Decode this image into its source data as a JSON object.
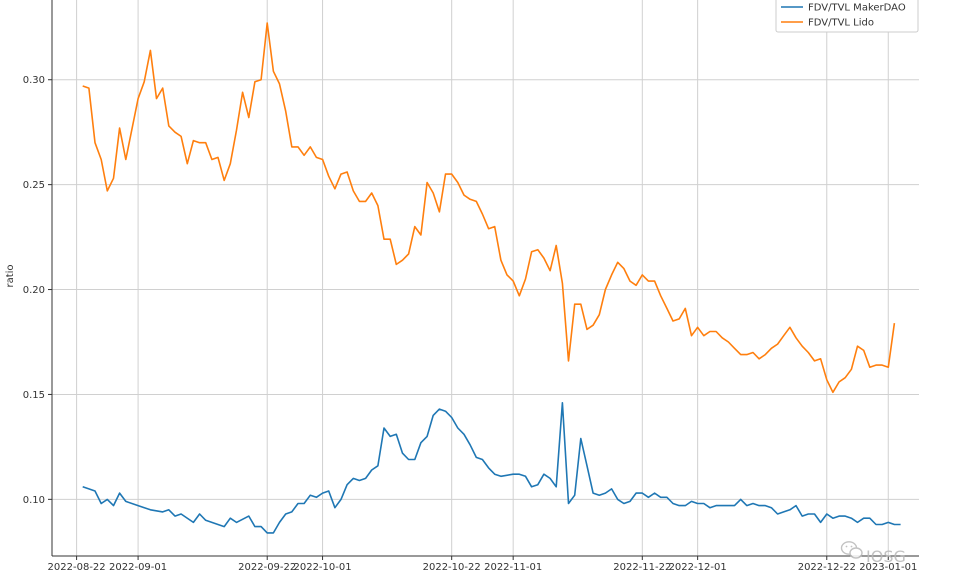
{
  "chart_data": {
    "type": "line",
    "title": "",
    "xlabel": "",
    "ylabel": "ratio",
    "xlim": [
      "2022-08-18",
      "2023-01-06"
    ],
    "ylim": [
      0.073,
      0.338
    ],
    "grid": true,
    "legend_position": "top-right",
    "y_ticks": [
      0.1,
      0.15,
      0.2,
      0.25,
      0.3
    ],
    "x_ticks": [
      "2022-08-22",
      "2022-09-01",
      "2022-09-22",
      "2022-10-01",
      "2022-10-22",
      "2022-11-01",
      "2022-11-22",
      "2022-12-01",
      "2022-12-22",
      "2023-01-01"
    ],
    "series": [
      {
        "name": "FDV/TVL MakerDAO",
        "color": "#1f77b4",
        "points": [
          [
            "2022-08-23",
            0.106
          ],
          [
            "2022-08-24",
            0.105
          ],
          [
            "2022-08-25",
            0.104
          ],
          [
            "2022-08-26",
            0.098
          ],
          [
            "2022-08-27",
            0.1
          ],
          [
            "2022-08-28",
            0.097
          ],
          [
            "2022-08-29",
            0.103
          ],
          [
            "2022-08-30",
            0.099
          ],
          [
            "2022-09-01",
            0.097
          ],
          [
            "2022-09-03",
            0.095
          ],
          [
            "2022-09-05",
            0.094
          ],
          [
            "2022-09-06",
            0.095
          ],
          [
            "2022-09-07",
            0.092
          ],
          [
            "2022-09-08",
            0.093
          ],
          [
            "2022-09-10",
            0.089
          ],
          [
            "2022-09-11",
            0.093
          ],
          [
            "2022-09-12",
            0.09
          ],
          [
            "2022-09-14",
            0.088
          ],
          [
            "2022-09-15",
            0.087
          ],
          [
            "2022-09-16",
            0.091
          ],
          [
            "2022-09-17",
            0.089
          ],
          [
            "2022-09-19",
            0.092
          ],
          [
            "2022-09-20",
            0.087
          ],
          [
            "2022-09-21",
            0.087
          ],
          [
            "2022-09-22",
            0.084
          ],
          [
            "2022-09-23",
            0.084
          ],
          [
            "2022-09-24",
            0.089
          ],
          [
            "2022-09-25",
            0.093
          ],
          [
            "2022-09-26",
            0.094
          ],
          [
            "2022-09-27",
            0.098
          ],
          [
            "2022-09-28",
            0.098
          ],
          [
            "2022-09-29",
            0.102
          ],
          [
            "2022-09-30",
            0.101
          ],
          [
            "2022-10-01",
            0.103
          ],
          [
            "2022-10-02",
            0.104
          ],
          [
            "2022-10-03",
            0.096
          ],
          [
            "2022-10-04",
            0.1
          ],
          [
            "2022-10-05",
            0.107
          ],
          [
            "2022-10-06",
            0.11
          ],
          [
            "2022-10-07",
            0.109
          ],
          [
            "2022-10-08",
            0.11
          ],
          [
            "2022-10-09",
            0.114
          ],
          [
            "2022-10-10",
            0.116
          ],
          [
            "2022-10-11",
            0.134
          ],
          [
            "2022-10-12",
            0.13
          ],
          [
            "2022-10-13",
            0.131
          ],
          [
            "2022-10-14",
            0.122
          ],
          [
            "2022-10-15",
            0.119
          ],
          [
            "2022-10-16",
            0.119
          ],
          [
            "2022-10-17",
            0.127
          ],
          [
            "2022-10-18",
            0.13
          ],
          [
            "2022-10-19",
            0.14
          ],
          [
            "2022-10-20",
            0.143
          ],
          [
            "2022-10-21",
            0.142
          ],
          [
            "2022-10-22",
            0.139
          ],
          [
            "2022-10-23",
            0.134
          ],
          [
            "2022-10-24",
            0.131
          ],
          [
            "2022-10-25",
            0.126
          ],
          [
            "2022-10-26",
            0.12
          ],
          [
            "2022-10-27",
            0.119
          ],
          [
            "2022-10-28",
            0.115
          ],
          [
            "2022-10-29",
            0.112
          ],
          [
            "2022-10-30",
            0.111
          ],
          [
            "2022-11-01",
            0.112
          ],
          [
            "2022-11-02",
            0.112
          ],
          [
            "2022-11-03",
            0.111
          ],
          [
            "2022-11-04",
            0.106
          ],
          [
            "2022-11-05",
            0.107
          ],
          [
            "2022-11-06",
            0.112
          ],
          [
            "2022-11-07",
            0.11
          ],
          [
            "2022-11-08",
            0.106
          ],
          [
            "2022-11-09",
            0.146
          ],
          [
            "2022-11-10",
            0.098
          ],
          [
            "2022-11-11",
            0.102
          ],
          [
            "2022-11-12",
            0.129
          ],
          [
            "2022-11-13",
            0.116
          ],
          [
            "2022-11-14",
            0.103
          ],
          [
            "2022-11-15",
            0.102
          ],
          [
            "2022-11-16",
            0.103
          ],
          [
            "2022-11-17",
            0.105
          ],
          [
            "2022-11-18",
            0.1
          ],
          [
            "2022-11-19",
            0.098
          ],
          [
            "2022-11-20",
            0.099
          ],
          [
            "2022-11-21",
            0.103
          ],
          [
            "2022-11-22",
            0.103
          ],
          [
            "2022-11-23",
            0.101
          ],
          [
            "2022-11-24",
            0.103
          ],
          [
            "2022-11-25",
            0.101
          ],
          [
            "2022-11-26",
            0.101
          ],
          [
            "2022-11-27",
            0.098
          ],
          [
            "2022-11-28",
            0.097
          ],
          [
            "2022-11-29",
            0.097
          ],
          [
            "2022-11-30",
            0.099
          ],
          [
            "2022-12-01",
            0.098
          ],
          [
            "2022-12-02",
            0.098
          ],
          [
            "2022-12-03",
            0.096
          ],
          [
            "2022-12-04",
            0.097
          ],
          [
            "2022-12-05",
            0.097
          ],
          [
            "2022-12-06",
            0.097
          ],
          [
            "2022-12-07",
            0.097
          ],
          [
            "2022-12-08",
            0.1
          ],
          [
            "2022-12-09",
            0.097
          ],
          [
            "2022-12-10",
            0.098
          ],
          [
            "2022-12-11",
            0.097
          ],
          [
            "2022-12-12",
            0.097
          ],
          [
            "2022-12-13",
            0.096
          ],
          [
            "2022-12-14",
            0.093
          ],
          [
            "2022-12-15",
            0.094
          ],
          [
            "2022-12-16",
            0.095
          ],
          [
            "2022-12-17",
            0.097
          ],
          [
            "2022-12-18",
            0.092
          ],
          [
            "2022-12-19",
            0.093
          ],
          [
            "2022-12-20",
            0.093
          ],
          [
            "2022-12-21",
            0.089
          ],
          [
            "2022-12-22",
            0.093
          ],
          [
            "2022-12-23",
            0.091
          ],
          [
            "2022-12-24",
            0.092
          ],
          [
            "2022-12-25",
            0.092
          ],
          [
            "2022-12-26",
            0.091
          ],
          [
            "2022-12-27",
            0.089
          ],
          [
            "2022-12-28",
            0.091
          ],
          [
            "2022-12-29",
            0.091
          ],
          [
            "2022-12-30",
            0.088
          ],
          [
            "2022-12-31",
            0.088
          ],
          [
            "2023-01-01",
            0.089
          ],
          [
            "2023-01-02",
            0.088
          ],
          [
            "2023-01-03",
            0.088
          ]
        ]
      },
      {
        "name": "FDV/TVL Lido",
        "color": "#ff7f0e",
        "points": [
          [
            "2022-08-23",
            0.297
          ],
          [
            "2022-08-24",
            0.296
          ],
          [
            "2022-08-25",
            0.27
          ],
          [
            "2022-08-26",
            0.262
          ],
          [
            "2022-08-27",
            0.247
          ],
          [
            "2022-08-28",
            0.253
          ],
          [
            "2022-08-29",
            0.277
          ],
          [
            "2022-08-30",
            0.262
          ],
          [
            "2022-09-01",
            0.291
          ],
          [
            "2022-09-02",
            0.299
          ],
          [
            "2022-09-03",
            0.314
          ],
          [
            "2022-09-04",
            0.291
          ],
          [
            "2022-09-05",
            0.296
          ],
          [
            "2022-09-06",
            0.278
          ],
          [
            "2022-09-07",
            0.275
          ],
          [
            "2022-09-08",
            0.273
          ],
          [
            "2022-09-09",
            0.26
          ],
          [
            "2022-09-10",
            0.271
          ],
          [
            "2022-09-11",
            0.27
          ],
          [
            "2022-09-12",
            0.27
          ],
          [
            "2022-09-13",
            0.262
          ],
          [
            "2022-09-14",
            0.263
          ],
          [
            "2022-09-15",
            0.252
          ],
          [
            "2022-09-16",
            0.26
          ],
          [
            "2022-09-17",
            0.276
          ],
          [
            "2022-09-18",
            0.294
          ],
          [
            "2022-09-19",
            0.282
          ],
          [
            "2022-09-20",
            0.299
          ],
          [
            "2022-09-21",
            0.3
          ],
          [
            "2022-09-22",
            0.327
          ],
          [
            "2022-09-23",
            0.304
          ],
          [
            "2022-09-24",
            0.298
          ],
          [
            "2022-09-25",
            0.285
          ],
          [
            "2022-09-26",
            0.268
          ],
          [
            "2022-09-27",
            0.268
          ],
          [
            "2022-09-28",
            0.264
          ],
          [
            "2022-09-29",
            0.268
          ],
          [
            "2022-09-30",
            0.263
          ],
          [
            "2022-10-01",
            0.262
          ],
          [
            "2022-10-02",
            0.254
          ],
          [
            "2022-10-03",
            0.248
          ],
          [
            "2022-10-04",
            0.255
          ],
          [
            "2022-10-05",
            0.256
          ],
          [
            "2022-10-06",
            0.247
          ],
          [
            "2022-10-07",
            0.242
          ],
          [
            "2022-10-08",
            0.242
          ],
          [
            "2022-10-09",
            0.246
          ],
          [
            "2022-10-10",
            0.24
          ],
          [
            "2022-10-11",
            0.224
          ],
          [
            "2022-10-12",
            0.224
          ],
          [
            "2022-10-13",
            0.212
          ],
          [
            "2022-10-14",
            0.214
          ],
          [
            "2022-10-15",
            0.217
          ],
          [
            "2022-10-16",
            0.23
          ],
          [
            "2022-10-17",
            0.226
          ],
          [
            "2022-10-18",
            0.251
          ],
          [
            "2022-10-19",
            0.246
          ],
          [
            "2022-10-20",
            0.237
          ],
          [
            "2022-10-21",
            0.255
          ],
          [
            "2022-10-22",
            0.255
          ],
          [
            "2022-10-23",
            0.251
          ],
          [
            "2022-10-24",
            0.245
          ],
          [
            "2022-10-25",
            0.243
          ],
          [
            "2022-10-26",
            0.242
          ],
          [
            "2022-10-27",
            0.236
          ],
          [
            "2022-10-28",
            0.229
          ],
          [
            "2022-10-29",
            0.23
          ],
          [
            "2022-10-30",
            0.214
          ],
          [
            "2022-10-31",
            0.207
          ],
          [
            "2022-11-01",
            0.204
          ],
          [
            "2022-11-02",
            0.197
          ],
          [
            "2022-11-03",
            0.205
          ],
          [
            "2022-11-04",
            0.218
          ],
          [
            "2022-11-05",
            0.219
          ],
          [
            "2022-11-06",
            0.215
          ],
          [
            "2022-11-07",
            0.209
          ],
          [
            "2022-11-08",
            0.221
          ],
          [
            "2022-11-09",
            0.203
          ],
          [
            "2022-11-10",
            0.166
          ],
          [
            "2022-11-11",
            0.193
          ],
          [
            "2022-11-12",
            0.193
          ],
          [
            "2022-11-13",
            0.181
          ],
          [
            "2022-11-14",
            0.183
          ],
          [
            "2022-11-15",
            0.188
          ],
          [
            "2022-11-16",
            0.2
          ],
          [
            "2022-11-17",
            0.207
          ],
          [
            "2022-11-18",
            0.213
          ],
          [
            "2022-11-19",
            0.21
          ],
          [
            "2022-11-20",
            0.204
          ],
          [
            "2022-11-21",
            0.202
          ],
          [
            "2022-11-22",
            0.207
          ],
          [
            "2022-11-23",
            0.204
          ],
          [
            "2022-11-24",
            0.204
          ],
          [
            "2022-11-25",
            0.197
          ],
          [
            "2022-11-26",
            0.191
          ],
          [
            "2022-11-27",
            0.185
          ],
          [
            "2022-11-28",
            0.186
          ],
          [
            "2022-11-29",
            0.191
          ],
          [
            "2022-11-30",
            0.178
          ],
          [
            "2022-12-01",
            0.182
          ],
          [
            "2022-12-02",
            0.178
          ],
          [
            "2022-12-03",
            0.18
          ],
          [
            "2022-12-04",
            0.18
          ],
          [
            "2022-12-05",
            0.177
          ],
          [
            "2022-12-06",
            0.175
          ],
          [
            "2022-12-07",
            0.172
          ],
          [
            "2022-12-08",
            0.169
          ],
          [
            "2022-12-09",
            0.169
          ],
          [
            "2022-12-10",
            0.17
          ],
          [
            "2022-12-11",
            0.167
          ],
          [
            "2022-12-12",
            0.169
          ],
          [
            "2022-12-13",
            0.172
          ],
          [
            "2022-12-14",
            0.174
          ],
          [
            "2022-12-15",
            0.178
          ],
          [
            "2022-12-16",
            0.182
          ],
          [
            "2022-12-17",
            0.177
          ],
          [
            "2022-12-18",
            0.173
          ],
          [
            "2022-12-19",
            0.17
          ],
          [
            "2022-12-20",
            0.166
          ],
          [
            "2022-12-21",
            0.167
          ],
          [
            "2022-12-22",
            0.157
          ],
          [
            "2022-12-23",
            0.151
          ],
          [
            "2022-12-24",
            0.156
          ],
          [
            "2022-12-25",
            0.158
          ],
          [
            "2022-12-26",
            0.162
          ],
          [
            "2022-12-27",
            0.173
          ],
          [
            "2022-12-28",
            0.171
          ],
          [
            "2022-12-29",
            0.163
          ],
          [
            "2022-12-30",
            0.164
          ],
          [
            "2022-12-31",
            0.164
          ],
          [
            "2023-01-01",
            0.163
          ],
          [
            "2023-01-02",
            0.184
          ]
        ]
      }
    ]
  },
  "watermark": {
    "text": "IOSG",
    "icon": "wechat-icon"
  }
}
